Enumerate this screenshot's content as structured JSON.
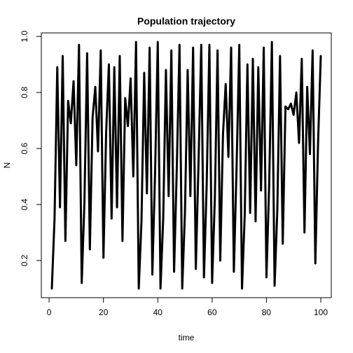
{
  "chart_data": {
    "type": "line",
    "title": "Population trajectory",
    "xlabel": "time",
    "ylabel": "N",
    "xlim": [
      1,
      100
    ],
    "ylim": [
      0.095,
      0.975
    ],
    "xticks": [
      0,
      20,
      40,
      60,
      80,
      100
    ],
    "yticks": [
      0.2,
      0.4,
      0.6,
      0.8,
      1.0
    ],
    "ytick_labels": [
      "0.2",
      "0.4",
      "0.6",
      "0.8",
      "1.0"
    ],
    "grid": false,
    "line_color": "#000000",
    "x": [
      1,
      2,
      3,
      4,
      5,
      6,
      7,
      8,
      9,
      10,
      11,
      12,
      13,
      14,
      15,
      16,
      17,
      18,
      19,
      20,
      21,
      22,
      23,
      24,
      25,
      26,
      27,
      28,
      29,
      30,
      31,
      32,
      33,
      34,
      35,
      36,
      37,
      38,
      39,
      40,
      41,
      42,
      43,
      44,
      45,
      46,
      47,
      48,
      49,
      50,
      51,
      52,
      53,
      54,
      55,
      56,
      57,
      58,
      59,
      60,
      61,
      62,
      63,
      64,
      65,
      66,
      67,
      68,
      69,
      70,
      71,
      72,
      73,
      74,
      75,
      76,
      77,
      78,
      79,
      80,
      81,
      82,
      83,
      84,
      85,
      86,
      87,
      88,
      89,
      90,
      91,
      92,
      93,
      94,
      95,
      96,
      97,
      98,
      99,
      100
    ],
    "values": [
      0.1,
      0.35,
      0.89,
      0.39,
      0.93,
      0.27,
      0.77,
      0.69,
      0.84,
      0.54,
      0.97,
      0.12,
      0.41,
      0.94,
      0.24,
      0.71,
      0.82,
      0.59,
      0.95,
      0.21,
      0.66,
      0.9,
      0.35,
      0.89,
      0.39,
      0.93,
      0.27,
      0.78,
      0.68,
      0.85,
      0.5,
      0.98,
      0.1,
      0.34,
      0.87,
      0.44,
      0.96,
      0.15,
      0.51,
      0.98,
      0.1,
      0.35,
      0.88,
      0.43,
      0.95,
      0.16,
      0.53,
      0.97,
      0.1,
      0.37,
      0.88,
      0.43,
      0.96,
      0.17,
      0.55,
      0.97,
      0.14,
      0.47,
      0.97,
      0.12,
      0.42,
      0.95,
      0.2,
      0.65,
      0.83,
      0.57,
      0.96,
      0.16,
      0.53,
      0.97,
      0.1,
      0.36,
      0.9,
      0.37,
      0.92,
      0.34,
      0.89,
      0.45,
      0.96,
      0.14,
      0.47,
      0.98,
      0.11,
      0.38,
      0.93,
      0.26,
      0.75,
      0.74,
      0.76,
      0.72,
      0.8,
      0.62,
      0.92,
      0.3,
      0.82,
      0.58,
      0.95,
      0.19,
      0.62,
      0.93
    ]
  }
}
